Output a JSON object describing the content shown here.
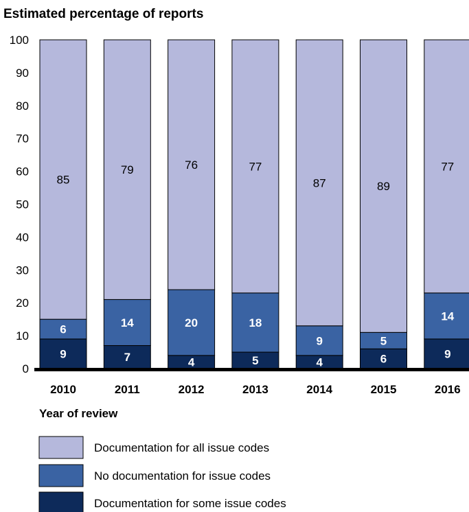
{
  "chart_data": {
    "type": "bar",
    "stacked": true,
    "title": "Estimated percentage of reports",
    "xlabel": "Year of review",
    "ylabel": "",
    "ylim": [
      0,
      100
    ],
    "yticks": [
      0,
      10,
      20,
      30,
      40,
      50,
      60,
      70,
      80,
      90,
      100
    ],
    "categories": [
      "2010",
      "2011",
      "2012",
      "2013",
      "2014",
      "2015",
      "2016"
    ],
    "series": [
      {
        "name": "Documentation for some issue codes",
        "values": [
          9,
          7,
          4,
          5,
          4,
          6,
          9
        ],
        "color": "#0d2a5a",
        "label_color": "#ffffff"
      },
      {
        "name": "No documentation for issue codes",
        "values": [
          6,
          14,
          20,
          18,
          9,
          5,
          14
        ],
        "color": "#3a63a3",
        "label_color": "#ffffff"
      },
      {
        "name": "Documentation for all issue codes",
        "values": [
          85,
          79,
          76,
          77,
          87,
          89,
          77
        ],
        "color": "#b5b8dc",
        "label_color": "#000000"
      }
    ],
    "legend_order": [
      2,
      1,
      0
    ],
    "legend_position": "bottom-left",
    "grid": false
  }
}
